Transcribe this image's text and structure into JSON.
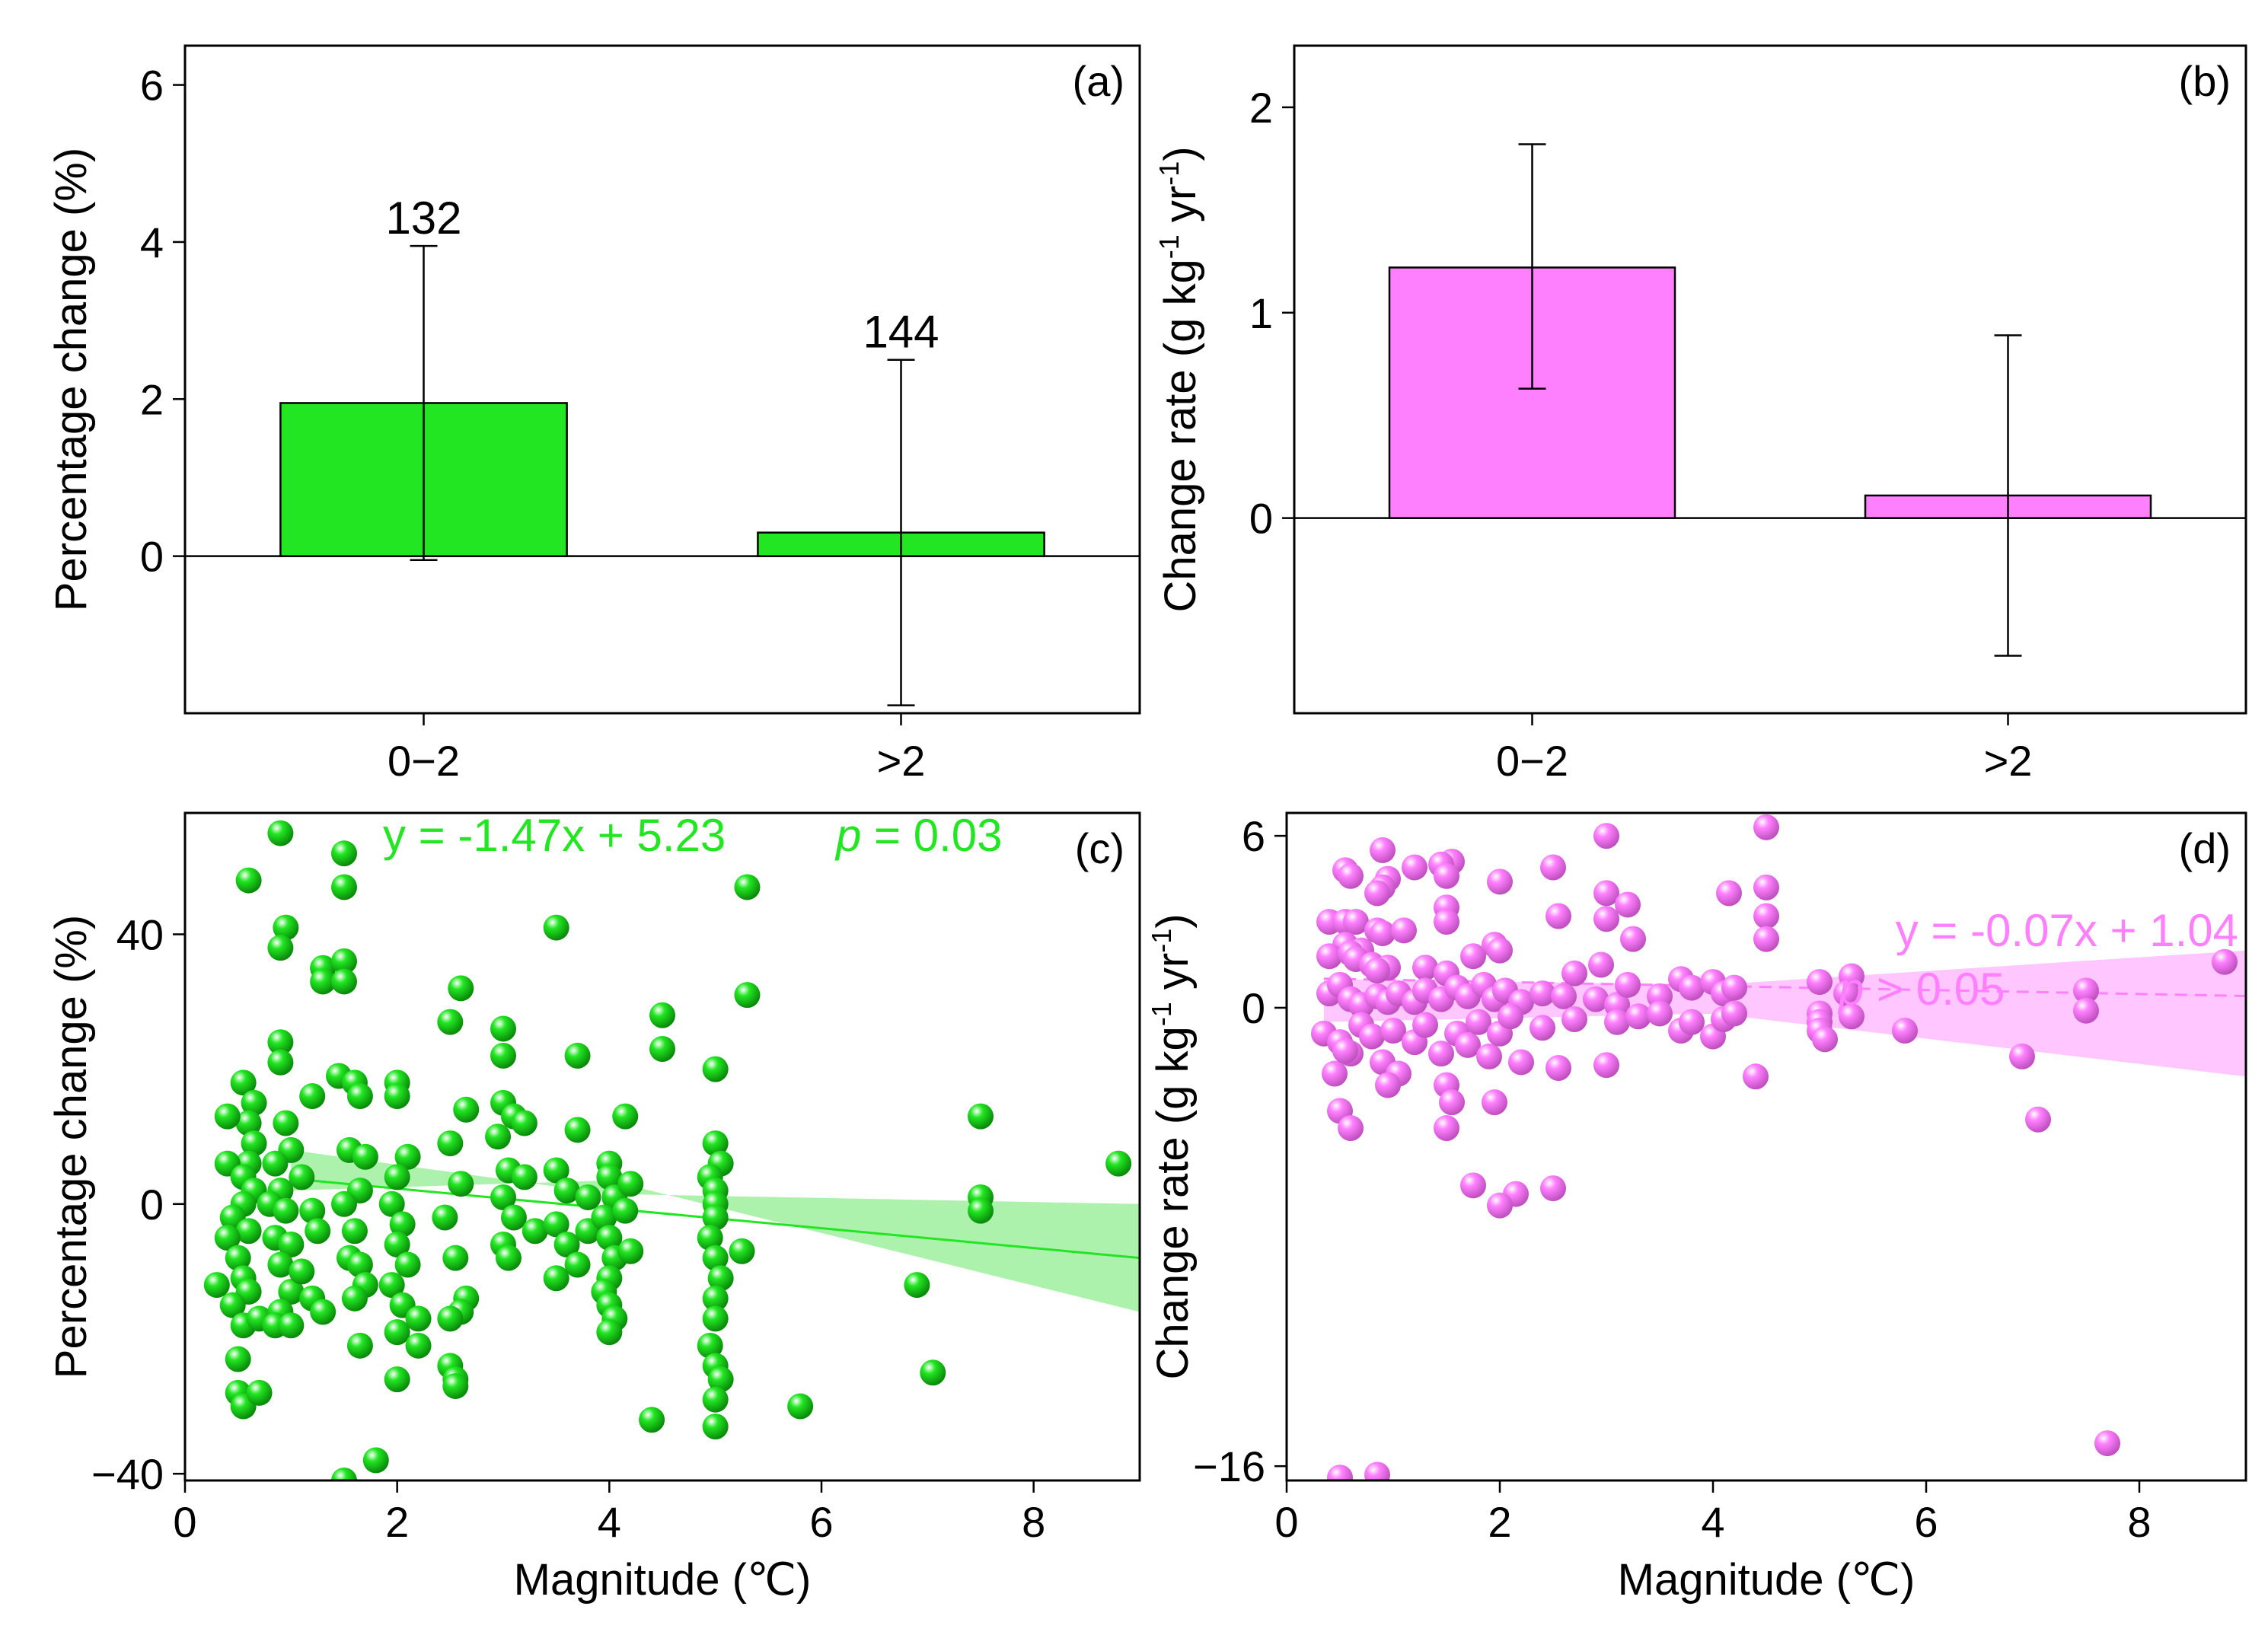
{
  "colors": {
    "green": "#22e622",
    "green_band": "#90ee90",
    "pink": "#ff80ff",
    "pink_band": "#ffb3ff",
    "axis": "#000000"
  },
  "chart_data": [
    {
      "id": "a",
      "type": "bar",
      "panel_label": "(a)",
      "ylabel": "Percentage change (%)",
      "xlabel": "",
      "categories": [
        "0−2",
        ">2"
      ],
      "values": [
        1.95,
        0.3
      ],
      "error_low": [
        -0.05,
        -1.9
      ],
      "error_high": [
        3.95,
        2.5
      ],
      "bar_labels": [
        "132",
        "144"
      ],
      "ylim": [
        -2,
        6.5
      ],
      "yticks": [
        0,
        2,
        4,
        6
      ],
      "ytick_labels": [
        "0",
        "2",
        "4",
        "6"
      ]
    },
    {
      "id": "b",
      "type": "bar",
      "panel_label": "(b)",
      "ylabel": "Change rate (g kg⁻¹ yr⁻¹)",
      "ylabel_parts": [
        "Change rate (g kg",
        "-1",
        " yr",
        "-1",
        ")"
      ],
      "xlabel": "",
      "categories": [
        "0−2",
        ">2"
      ],
      "values": [
        1.22,
        0.11
      ],
      "error_low": [
        0.63,
        -0.67
      ],
      "error_high": [
        1.82,
        0.89
      ],
      "ylim": [
        -0.95,
        2.3
      ],
      "yticks": [
        0,
        1,
        2
      ],
      "ytick_labels": [
        "0",
        "1",
        "2"
      ]
    },
    {
      "id": "c",
      "type": "scatter",
      "panel_label": "(c)",
      "ylabel": "Percentage change (%)",
      "xlabel": "Magnitude (℃)",
      "xlim": [
        0,
        9
      ],
      "ylim": [
        -41,
        58
      ],
      "xticks": [
        0,
        2,
        4,
        6,
        8
      ],
      "yticks": [
        -40,
        0,
        40
      ],
      "ytick_labels": [
        "−40",
        "0",
        "40"
      ],
      "fit": {
        "slope": -1.47,
        "intercept": 5.23,
        "x_range": [
          1,
          9
        ],
        "band": [
          [
            1,
            8,
            2
          ],
          [
            4,
            1.5,
            3.5
          ],
          [
            9,
            0,
            -16
          ]
        ],
        "line_style": "solid"
      },
      "equation": "y = -1.47x + 5.23",
      "p_label": "p",
      "p_text": " = 0.03",
      "points": [
        [
          0.9,
          55
        ],
        [
          0.6,
          48
        ],
        [
          1.5,
          52
        ],
        [
          1.5,
          47
        ],
        [
          0.95,
          41
        ],
        [
          0.9,
          38
        ],
        [
          1.3,
          35
        ],
        [
          1.3,
          33
        ],
        [
          1.5,
          36
        ],
        [
          1.5,
          33
        ],
        [
          0.9,
          24
        ],
        [
          0.9,
          21
        ],
        [
          0.55,
          18
        ],
        [
          0.65,
          15
        ],
        [
          0.6,
          12
        ],
        [
          0.4,
          13
        ],
        [
          0.65,
          9
        ],
        [
          0.6,
          6
        ],
        [
          0.4,
          6
        ],
        [
          0.55,
          4
        ],
        [
          0.65,
          2
        ],
        [
          0.55,
          0
        ],
        [
          0.45,
          -2
        ],
        [
          0.6,
          -4
        ],
        [
          0.4,
          -5
        ],
        [
          0.5,
          -8
        ],
        [
          0.55,
          -11
        ],
        [
          0.6,
          -13
        ],
        [
          0.3,
          -12
        ],
        [
          0.45,
          -15
        ],
        [
          0.55,
          -18
        ],
        [
          0.7,
          -17
        ],
        [
          0.5,
          -23
        ],
        [
          0.5,
          -28
        ],
        [
          0.55,
          -30
        ],
        [
          0.7,
          -28
        ],
        [
          0.95,
          12
        ],
        [
          1.0,
          8
        ],
        [
          0.85,
          6
        ],
        [
          0.9,
          2
        ],
        [
          0.8,
          0
        ],
        [
          0.95,
          -1
        ],
        [
          0.85,
          -5
        ],
        [
          1.0,
          -6
        ],
        [
          0.9,
          -9
        ],
        [
          1.0,
          -13
        ],
        [
          0.9,
          -16
        ],
        [
          0.85,
          -18
        ],
        [
          1.0,
          -18
        ],
        [
          1.2,
          16
        ],
        [
          1.1,
          4
        ],
        [
          1.2,
          -1
        ],
        [
          1.25,
          -4
        ],
        [
          1.1,
          -10
        ],
        [
          1.2,
          -14
        ],
        [
          1.3,
          -16
        ],
        [
          1.45,
          19
        ],
        [
          1.6,
          18
        ],
        [
          1.65,
          16
        ],
        [
          1.55,
          8
        ],
        [
          1.7,
          7
        ],
        [
          1.65,
          2
        ],
        [
          1.5,
          0
        ],
        [
          1.6,
          -4
        ],
        [
          1.55,
          -8
        ],
        [
          1.65,
          -9
        ],
        [
          1.7,
          -12
        ],
        [
          1.6,
          -14
        ],
        [
          1.65,
          -21
        ],
        [
          1.5,
          -41
        ],
        [
          1.8,
          -38
        ],
        [
          2.0,
          18
        ],
        [
          2.0,
          16
        ],
        [
          2.1,
          7
        ],
        [
          2.0,
          4
        ],
        [
          1.95,
          0
        ],
        [
          2.05,
          -3
        ],
        [
          2.0,
          -6
        ],
        [
          2.1,
          -9
        ],
        [
          1.95,
          -12
        ],
        [
          2.05,
          -15
        ],
        [
          2.0,
          -19
        ],
        [
          2.2,
          -17
        ],
        [
          2.2,
          -21
        ],
        [
          2.0,
          -26
        ],
        [
          2.6,
          32
        ],
        [
          2.5,
          27
        ],
        [
          2.65,
          14
        ],
        [
          2.5,
          9
        ],
        [
          2.6,
          3
        ],
        [
          2.45,
          -2
        ],
        [
          2.55,
          -8
        ],
        [
          2.65,
          -14
        ],
        [
          2.6,
          -16
        ],
        [
          2.5,
          -17
        ],
        [
          2.5,
          -24
        ],
        [
          2.55,
          -26
        ],
        [
          2.55,
          -27
        ],
        [
          3.0,
          26
        ],
        [
          3.0,
          22
        ],
        [
          3.0,
          15
        ],
        [
          3.1,
          13
        ],
        [
          2.95,
          10
        ],
        [
          3.2,
          12
        ],
        [
          3.05,
          5
        ],
        [
          3.2,
          4
        ],
        [
          3.0,
          1
        ],
        [
          3.1,
          -2
        ],
        [
          3.0,
          -6
        ],
        [
          3.05,
          -8
        ],
        [
          3.3,
          -4
        ],
        [
          3.5,
          41
        ],
        [
          3.7,
          22
        ],
        [
          3.7,
          11
        ],
        [
          3.5,
          5
        ],
        [
          3.6,
          2
        ],
        [
          3.5,
          -3
        ],
        [
          3.6,
          -6
        ],
        [
          3.7,
          -9
        ],
        [
          3.5,
          -11
        ],
        [
          3.8,
          -4
        ],
        [
          3.8,
          1
        ],
        [
          4.0,
          6
        ],
        [
          4.0,
          4
        ],
        [
          4.05,
          1
        ],
        [
          3.95,
          -2
        ],
        [
          4.0,
          -5
        ],
        [
          4.05,
          -8
        ],
        [
          4.0,
          -11
        ],
        [
          3.95,
          -13
        ],
        [
          4.0,
          -15
        ],
        [
          4.05,
          -17
        ],
        [
          4.0,
          -19
        ],
        [
          4.15,
          13
        ],
        [
          4.2,
          3
        ],
        [
          4.15,
          -1
        ],
        [
          4.2,
          -7
        ],
        [
          4.5,
          28
        ],
        [
          4.5,
          23
        ],
        [
          4.4,
          -32
        ],
        [
          5.0,
          20
        ],
        [
          5.0,
          9
        ],
        [
          5.05,
          6
        ],
        [
          4.95,
          4
        ],
        [
          5.0,
          2
        ],
        [
          5.0,
          0
        ],
        [
          5.0,
          -2
        ],
        [
          4.95,
          -5
        ],
        [
          5.0,
          -8
        ],
        [
          5.05,
          -11
        ],
        [
          5.0,
          -14
        ],
        [
          5.0,
          -17
        ],
        [
          4.95,
          -21
        ],
        [
          5.0,
          -24
        ],
        [
          5.05,
          -26
        ],
        [
          5.0,
          -29
        ],
        [
          5.0,
          -33
        ],
        [
          5.3,
          47
        ],
        [
          5.3,
          31
        ],
        [
          5.25,
          -7
        ],
        [
          5.8,
          -30
        ],
        [
          6.9,
          -12
        ],
        [
          7.05,
          -25
        ],
        [
          7.5,
          13
        ],
        [
          7.5,
          1
        ],
        [
          7.5,
          -1
        ],
        [
          8.8,
          6
        ]
      ]
    },
    {
      "id": "d",
      "type": "scatter",
      "panel_label": "(d)",
      "ylabel": "Change rate (g kg⁻¹ yr⁻¹)",
      "ylabel_parts": [
        "Change rate (g kg",
        "-1",
        " yr",
        "-1",
        ")"
      ],
      "xlabel": "Magnitude (℃)",
      "xlim": [
        0,
        9
      ],
      "ylim": [
        -16.5,
        6.8
      ],
      "xticks": [
        0,
        2,
        4,
        6,
        8
      ],
      "yticks": [
        -16,
        0,
        6
      ],
      "ytick_labels": [
        "−16",
        "0",
        "6"
      ],
      "fit": {
        "slope": -0.07,
        "intercept": 1.04,
        "x_range": [
          0.35,
          9
        ],
        "band": [
          [
            0.35,
            1.0,
            -0.5
          ],
          [
            4,
            0.8,
            -0.2
          ],
          [
            9,
            2.0,
            -2.4
          ]
        ],
        "line_style": "dashed"
      },
      "equation": "y = -0.07x + 1.04",
      "p_label": "p",
      "p_text": " > 0.05",
      "points": [
        [
          4.5,
          6.3
        ],
        [
          3.0,
          6.0
        ],
        [
          0.9,
          5.5
        ],
        [
          1.55,
          5.1
        ],
        [
          1.45,
          5.0
        ],
        [
          1.2,
          4.9
        ],
        [
          2.5,
          4.9
        ],
        [
          0.55,
          4.8
        ],
        [
          1.5,
          4.6
        ],
        [
          0.95,
          4.5
        ],
        [
          0.6,
          4.6
        ],
        [
          2.0,
          4.4
        ],
        [
          0.9,
          4.2
        ],
        [
          0.85,
          4.0
        ],
        [
          4.5,
          4.2
        ],
        [
          4.15,
          4.0
        ],
        [
          3.0,
          4.0
        ],
        [
          3.2,
          3.6
        ],
        [
          1.5,
          3.5
        ],
        [
          1.5,
          3.0
        ],
        [
          0.4,
          3.0
        ],
        [
          0.55,
          3.0
        ],
        [
          0.65,
          3.0
        ],
        [
          0.85,
          2.7
        ],
        [
          0.9,
          2.6
        ],
        [
          1.1,
          2.7
        ],
        [
          2.55,
          3.2
        ],
        [
          3.0,
          3.1
        ],
        [
          4.5,
          3.2
        ],
        [
          0.55,
          2.2
        ],
        [
          0.7,
          2.0
        ],
        [
          0.4,
          1.8
        ],
        [
          0.6,
          1.9
        ],
        [
          0.65,
          1.7
        ],
        [
          0.8,
          1.5
        ],
        [
          0.95,
          1.4
        ],
        [
          0.85,
          1.3
        ],
        [
          1.3,
          1.4
        ],
        [
          1.5,
          1.2
        ],
        [
          1.75,
          1.8
        ],
        [
          1.95,
          2.2
        ],
        [
          2.0,
          2.0
        ],
        [
          3.25,
          2.4
        ],
        [
          4.5,
          2.4
        ],
        [
          2.95,
          1.5
        ],
        [
          2.7,
          1.2
        ],
        [
          0.4,
          0.5
        ],
        [
          0.5,
          0.8
        ],
        [
          0.6,
          0.3
        ],
        [
          0.7,
          0.1
        ],
        [
          0.85,
          0.4
        ],
        [
          0.95,
          0.2
        ],
        [
          1.05,
          0.5
        ],
        [
          1.2,
          0.2
        ],
        [
          1.3,
          0.6
        ],
        [
          1.45,
          0.3
        ],
        [
          1.6,
          0.7
        ],
        [
          1.7,
          0.4
        ],
        [
          1.85,
          0.8
        ],
        [
          1.95,
          0.3
        ],
        [
          2.05,
          0.6
        ],
        [
          2.2,
          0.2
        ],
        [
          2.4,
          0.5
        ],
        [
          2.6,
          0.4
        ],
        [
          2.9,
          0.3
        ],
        [
          3.1,
          0.1
        ],
        [
          3.2,
          0.8
        ],
        [
          3.5,
          0.4
        ],
        [
          3.7,
          1.0
        ],
        [
          3.8,
          0.7
        ],
        [
          4.0,
          0.9
        ],
        [
          4.1,
          0.5
        ],
        [
          4.2,
          0.7
        ],
        [
          5.0,
          0.9
        ],
        [
          5.3,
          1.1
        ],
        [
          5.25,
          0.5
        ],
        [
          7.5,
          0.6
        ],
        [
          8.8,
          1.6
        ],
        [
          0.35,
          -0.9
        ],
        [
          0.5,
          -1.2
        ],
        [
          0.6,
          -1.6
        ],
        [
          0.7,
          -0.6
        ],
        [
          0.8,
          -1.0
        ],
        [
          0.9,
          -1.9
        ],
        [
          1.0,
          -0.8
        ],
        [
          1.05,
          -2.3
        ],
        [
          1.2,
          -1.2
        ],
        [
          1.3,
          -0.6
        ],
        [
          1.45,
          -1.6
        ],
        [
          1.5,
          -2.7
        ],
        [
          1.6,
          -0.9
        ],
        [
          1.7,
          -1.3
        ],
        [
          1.8,
          -0.5
        ],
        [
          1.9,
          -1.7
        ],
        [
          2.0,
          -0.9
        ],
        [
          2.1,
          -0.3
        ],
        [
          2.2,
          -1.9
        ],
        [
          2.4,
          -0.7
        ],
        [
          2.55,
          -2.1
        ],
        [
          2.7,
          -0.4
        ],
        [
          3.0,
          -2.0
        ],
        [
          3.1,
          -0.5
        ],
        [
          3.3,
          -0.3
        ],
        [
          3.5,
          -0.2
        ],
        [
          3.7,
          -0.8
        ],
        [
          3.8,
          -0.5
        ],
        [
          4.0,
          -1.0
        ],
        [
          4.1,
          -0.4
        ],
        [
          4.2,
          -0.2
        ],
        [
          4.4,
          -2.4
        ],
        [
          5.0,
          -0.2
        ],
        [
          5.0,
          -0.5
        ],
        [
          5.0,
          -0.8
        ],
        [
          5.05,
          -1.1
        ],
        [
          5.3,
          -0.3
        ],
        [
          5.8,
          -0.8
        ],
        [
          7.5,
          -0.1
        ],
        [
          6.9,
          -1.7
        ],
        [
          0.45,
          -2.3
        ],
        [
          0.55,
          -1.5
        ],
        [
          0.95,
          -2.7
        ],
        [
          1.55,
          -3.3
        ],
        [
          1.95,
          -3.3
        ],
        [
          1.5,
          -4.2
        ],
        [
          0.5,
          -3.6
        ],
        [
          0.6,
          -4.2
        ],
        [
          7.05,
          -3.9
        ],
        [
          1.75,
          -6.2
        ],
        [
          2.5,
          -6.3
        ],
        [
          2.15,
          -6.5
        ],
        [
          2.0,
          -6.9
        ],
        [
          0.5,
          -16.4
        ],
        [
          0.85,
          -16.3
        ],
        [
          7.7,
          -15.2
        ]
      ]
    }
  ]
}
